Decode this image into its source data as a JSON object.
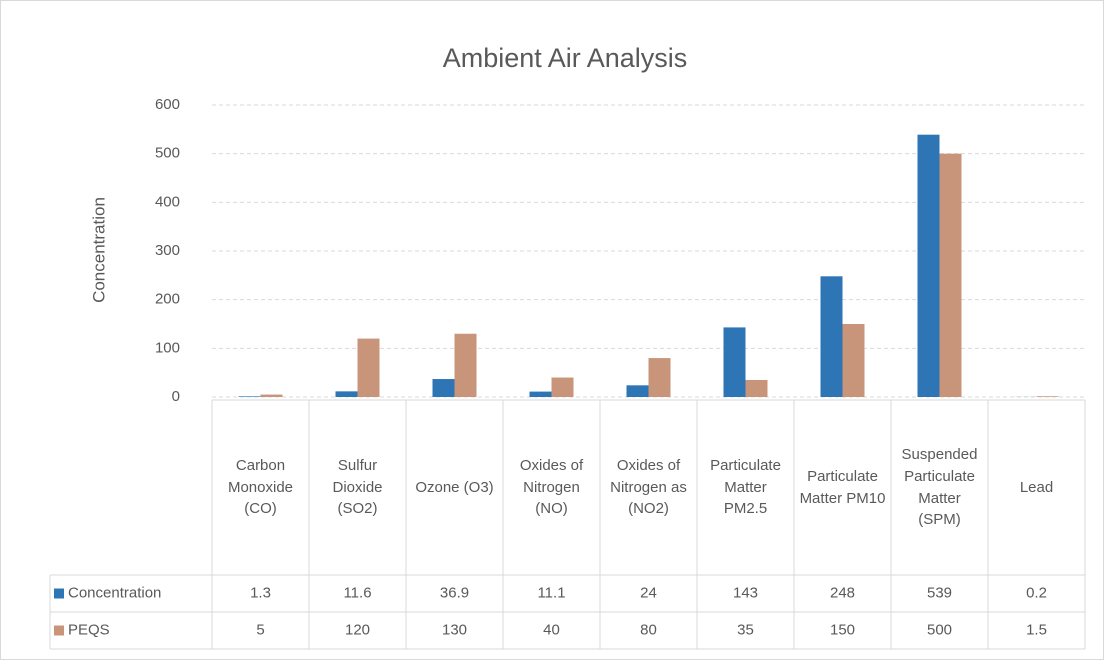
{
  "chart_data": {
    "type": "bar",
    "title": "Ambient Air Analysis",
    "y_label": "Concentration",
    "categories": [
      "Carbon Monoxide (CO)",
      "Sulfur Dioxide (SO2)",
      "Ozone (O3)",
      "Oxides of Nitrogen (NO)",
      "Oxides of Nitrogen as (NO2)",
      "Particulate Matter PM2.5",
      "Particulate Matter PM10",
      "Suspended Particulate Matter (SPM)",
      "Lead"
    ],
    "series": [
      {
        "name": "Concentration",
        "color": "#2e75b6",
        "values": [
          1.3,
          11.6,
          36.9,
          11.1,
          24,
          143,
          248,
          539,
          0.2
        ]
      },
      {
        "name": "PEQS",
        "color": "#c8957b",
        "values": [
          5,
          120,
          130,
          40,
          80,
          35,
          150,
          500,
          1.5
        ]
      }
    ],
    "ylim": [
      0,
      600
    ],
    "yticks": [
      0,
      100,
      200,
      300,
      400,
      500,
      600
    ],
    "grid": true,
    "data_table": true
  }
}
